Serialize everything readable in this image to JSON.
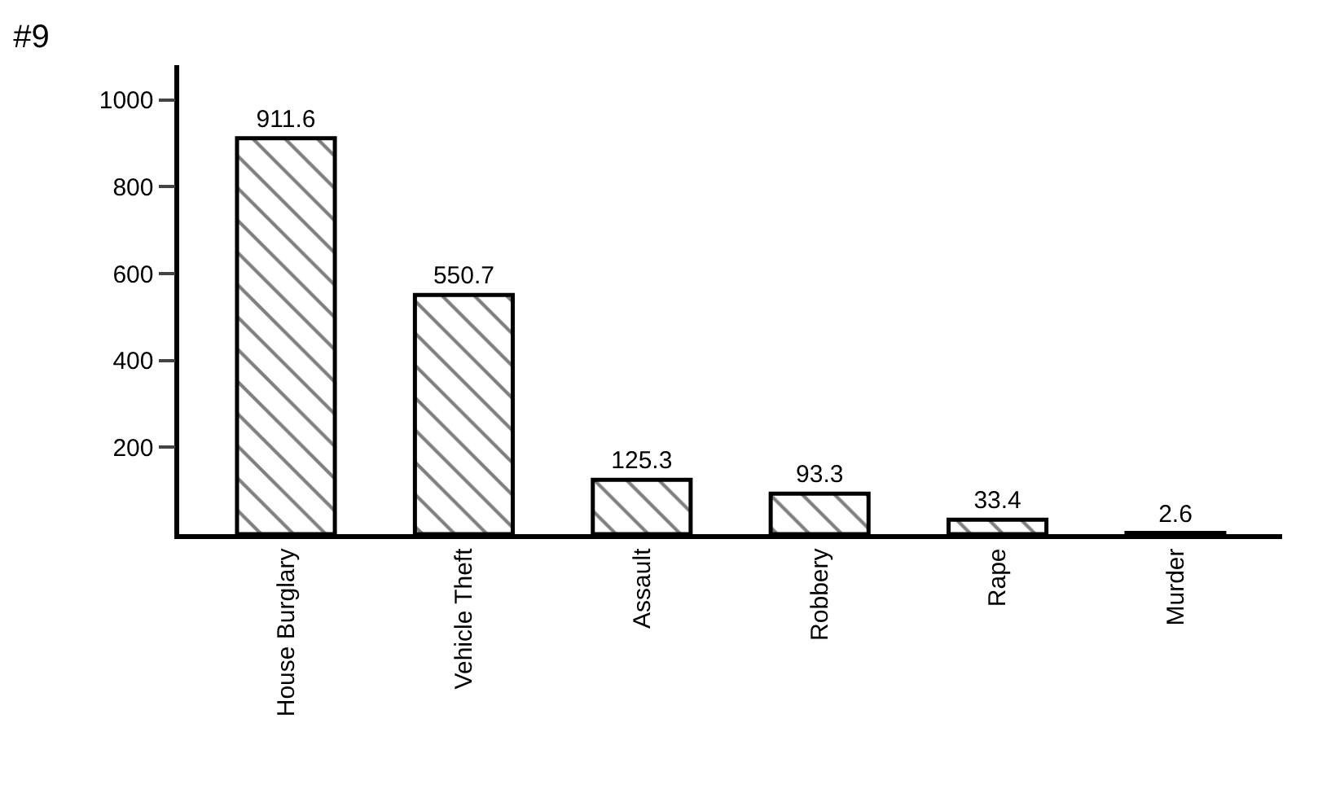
{
  "chart_data": {
    "type": "bar",
    "title": "#9",
    "categories": [
      "House Burglary",
      "Vehicle Theft",
      "Assault",
      "Robbery",
      "Rape",
      "Murder"
    ],
    "values": [
      911.6,
      550.7,
      125.3,
      93.3,
      33.4,
      2.6
    ],
    "color": "#000000",
    "ylim": [
      0,
      1080
    ],
    "yticks": [
      200,
      400,
      600,
      800,
      1000
    ],
    "data_labels": true
  }
}
